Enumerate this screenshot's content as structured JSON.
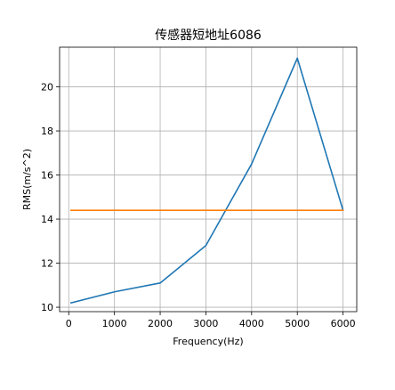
{
  "chart_data": {
    "type": "line",
    "title": "传感器短地址6086",
    "xlabel": "Frequency(Hz)",
    "ylabel": "RMS(m/s^2)",
    "xlim": [
      -200,
      6300
    ],
    "ylim": [
      9.8,
      21.8
    ],
    "xticks": [
      0,
      1000,
      2000,
      3000,
      4000,
      5000,
      6000
    ],
    "yticks": [
      10,
      12,
      14,
      16,
      18,
      20
    ],
    "grid": true,
    "series": [
      {
        "color": "#1f77b4",
        "x": [
          50,
          1000,
          2000,
          3000,
          4000,
          5000,
          6000
        ],
        "y": [
          10.2,
          10.7,
          11.1,
          12.8,
          16.5,
          21.3,
          14.4
        ]
      },
      {
        "color": "#ff7f0e",
        "x": [
          50,
          6000
        ],
        "y": [
          14.4,
          14.4
        ]
      }
    ]
  }
}
